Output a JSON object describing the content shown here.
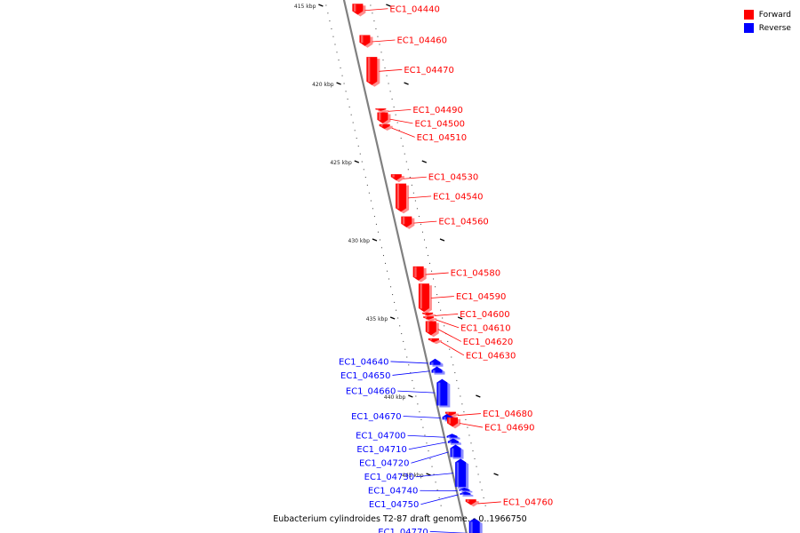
{
  "colors": {
    "forward": "#ff0000",
    "reverse": "#0000ff",
    "backbone": "#808080"
  },
  "legend": [
    {
      "label": "Forward",
      "color": "#ff0000"
    },
    {
      "label": "Reverse",
      "color": "#0000ff"
    }
  ],
  "caption": "Eubacterium cylindroides T2-87 draft genome. - 0..1966750",
  "ticks": [
    {
      "label": "415 kbp",
      "kbp": 415
    },
    {
      "label": "420 kbp",
      "kbp": 420
    },
    {
      "label": "425 kbp",
      "kbp": 425
    },
    {
      "label": "430 kbp",
      "kbp": 430
    },
    {
      "label": "435 kbp",
      "kbp": 435
    },
    {
      "label": "440 kbp",
      "kbp": 440
    },
    {
      "label": "445 kbp",
      "kbp": 445
    }
  ],
  "genes": [
    {
      "id": "EC1_04440",
      "strand": "forward",
      "start_kbp": 414.9,
      "end_kbp": 415.6
    },
    {
      "id": "EC1_04460",
      "strand": "forward",
      "start_kbp": 416.9,
      "end_kbp": 417.6
    },
    {
      "id": "EC1_04470",
      "strand": "forward",
      "start_kbp": 418.3,
      "end_kbp": 420.1
    },
    {
      "id": "EC1_04490",
      "strand": "forward",
      "start_kbp": 421.6,
      "end_kbp": 421.75
    },
    {
      "id": "EC1_04500",
      "strand": "forward",
      "start_kbp": 421.85,
      "end_kbp": 422.55
    },
    {
      "id": "EC1_04510",
      "strand": "forward",
      "start_kbp": 422.6,
      "end_kbp": 422.9
    },
    {
      "id": "EC1_04530",
      "strand": "forward",
      "start_kbp": 425.8,
      "end_kbp": 426.2
    },
    {
      "id": "EC1_04540",
      "strand": "forward",
      "start_kbp": 426.4,
      "end_kbp": 428.2
    },
    {
      "id": "EC1_04560",
      "strand": "forward",
      "start_kbp": 428.5,
      "end_kbp": 429.2
    },
    {
      "id": "EC1_04580",
      "strand": "forward",
      "start_kbp": 431.7,
      "end_kbp": 432.6
    },
    {
      "id": "EC1_04590",
      "strand": "forward",
      "start_kbp": 432.8,
      "end_kbp": 434.6
    },
    {
      "id": "EC1_04600",
      "strand": "forward",
      "start_kbp": 434.65,
      "end_kbp": 434.85
    },
    {
      "id": "EC1_04610",
      "strand": "forward",
      "start_kbp": 434.9,
      "end_kbp": 435.1
    },
    {
      "id": "EC1_04620",
      "strand": "forward",
      "start_kbp": 435.2,
      "end_kbp": 436.1
    },
    {
      "id": "EC1_04630",
      "strand": "forward",
      "start_kbp": 436.3,
      "end_kbp": 436.55
    },
    {
      "id": "EC1_04640",
      "strand": "reverse",
      "start_kbp": 437.6,
      "end_kbp": 438.0
    },
    {
      "id": "EC1_04650",
      "strand": "reverse",
      "start_kbp": 438.1,
      "end_kbp": 438.5
    },
    {
      "id": "EC1_04660",
      "strand": "reverse",
      "start_kbp": 438.9,
      "end_kbp": 440.6
    },
    {
      "id": "EC1_04670",
      "strand": "reverse",
      "start_kbp": 441.1,
      "end_kbp": 441.5
    },
    {
      "id": "EC1_04680",
      "strand": "forward",
      "start_kbp": 441.0,
      "end_kbp": 441.25
    },
    {
      "id": "EC1_04690",
      "strand": "forward",
      "start_kbp": 441.35,
      "end_kbp": 441.95
    },
    {
      "id": "EC1_04700",
      "strand": "reverse",
      "start_kbp": 442.4,
      "end_kbp": 442.65
    },
    {
      "id": "EC1_04710",
      "strand": "reverse",
      "start_kbp": 442.7,
      "end_kbp": 443.0
    },
    {
      "id": "EC1_04720",
      "strand": "reverse",
      "start_kbp": 443.1,
      "end_kbp": 443.9
    },
    {
      "id": "EC1_04730",
      "strand": "reverse",
      "start_kbp": 444.0,
      "end_kbp": 445.8
    },
    {
      "id": "EC1_04740",
      "strand": "reverse",
      "start_kbp": 445.85,
      "end_kbp": 446.05
    },
    {
      "id": "EC1_04750",
      "strand": "reverse",
      "start_kbp": 446.1,
      "end_kbp": 446.3
    },
    {
      "id": "EC1_04760",
      "strand": "forward",
      "start_kbp": 446.6,
      "end_kbp": 446.95
    },
    {
      "id": "EC1_04770",
      "strand": "reverse",
      "start_kbp": 447.8,
      "end_kbp": 449.7
    }
  ]
}
